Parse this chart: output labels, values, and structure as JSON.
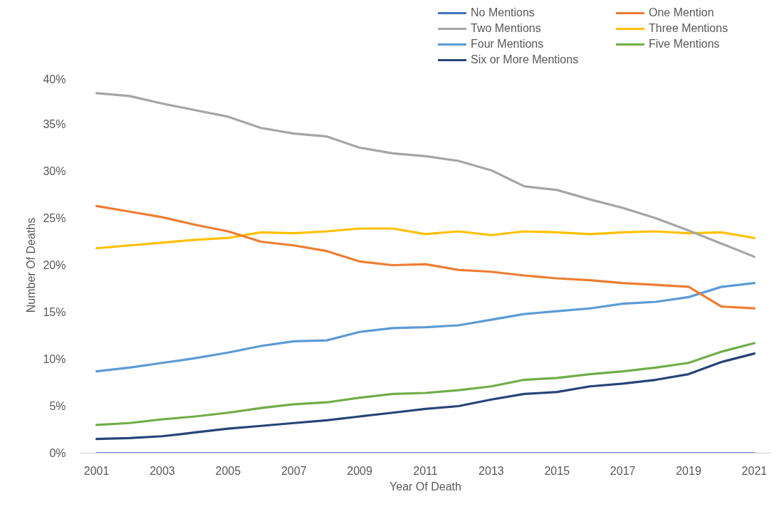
{
  "chart_data": {
    "type": "line",
    "xlabel": "Year Of Death",
    "ylabel": "Number Of Deaths",
    "x": [
      2001,
      2002,
      2003,
      2004,
      2005,
      2006,
      2007,
      2008,
      2009,
      2010,
      2011,
      2012,
      2013,
      2014,
      2015,
      2016,
      2017,
      2018,
      2019,
      2020,
      2021
    ],
    "xlim": [
      2000.5,
      2021.5
    ],
    "xticks": [
      2001,
      2003,
      2005,
      2007,
      2009,
      2011,
      2013,
      2015,
      2017,
      2019,
      2021
    ],
    "ylim": [
      0,
      40
    ],
    "yticks": [
      {
        "value": 0,
        "label": "0%"
      },
      {
        "value": 5,
        "label": "5%"
      },
      {
        "value": 10,
        "label": "10%"
      },
      {
        "value": 15,
        "label": "15%"
      },
      {
        "value": 20,
        "label": "20%"
      },
      {
        "value": 25,
        "label": "25%"
      },
      {
        "value": 30,
        "label": "30%"
      },
      {
        "value": 35,
        "label": "35%"
      },
      {
        "value": 40,
        "label": "40%"
      }
    ],
    "grid": false,
    "legend": "top right",
    "series": [
      {
        "name": "No Mentions",
        "color": "#4472c4",
        "values": [
          0,
          0,
          0,
          0,
          0,
          0,
          0,
          0,
          0,
          0,
          0,
          0,
          0,
          0,
          0,
          0,
          0,
          0,
          0,
          0,
          0
        ]
      },
      {
        "name": "One Mention",
        "color": "#ed7d31",
        "values": [
          26.3,
          25.7,
          25.1,
          24.3,
          23.6,
          22.5,
          22.1,
          21.5,
          20.4,
          20.0,
          20.1,
          19.5,
          19.3,
          18.9,
          18.6,
          18.4,
          18.1,
          17.9,
          17.7,
          15.6,
          15.4
        ]
      },
      {
        "name": "Two Mentions",
        "color": "#a5a5a5",
        "values": [
          38.3,
          38.0,
          37.2,
          36.5,
          35.8,
          34.6,
          34.0,
          33.7,
          32.5,
          31.9,
          31.6,
          31.1,
          30.1,
          28.4,
          28.0,
          27.0,
          26.1,
          25.0,
          23.7,
          22.3,
          20.9
        ]
      },
      {
        "name": "Three Mentions",
        "color": "#ffc000",
        "values": [
          21.8,
          22.1,
          22.4,
          22.7,
          22.9,
          23.5,
          23.4,
          23.6,
          23.9,
          23.9,
          23.3,
          23.6,
          23.2,
          23.6,
          23.5,
          23.3,
          23.5,
          23.6,
          23.4,
          23.5,
          22.9
        ]
      },
      {
        "name": "Four Mentions",
        "color": "#5b9bd5",
        "values": [
          8.7,
          9.1,
          9.6,
          10.1,
          10.7,
          11.4,
          11.9,
          12.0,
          12.9,
          13.3,
          13.4,
          13.6,
          14.2,
          14.8,
          15.1,
          15.4,
          15.9,
          16.1,
          16.6,
          17.7,
          18.1
        ]
      },
      {
        "name": "Five Mentions",
        "color": "#70ad47",
        "values": [
          3.0,
          3.2,
          3.6,
          3.9,
          4.3,
          4.8,
          5.2,
          5.4,
          5.9,
          6.3,
          6.4,
          6.7,
          7.1,
          7.8,
          8.0,
          8.4,
          8.7,
          9.1,
          9.6,
          10.8,
          11.7
        ]
      },
      {
        "name": "Six or More Mentions",
        "color": "#264478",
        "values": [
          1.5,
          1.6,
          1.8,
          2.2,
          2.6,
          2.9,
          3.2,
          3.5,
          3.9,
          4.3,
          4.7,
          5.0,
          5.7,
          6.3,
          6.5,
          7.1,
          7.4,
          7.8,
          8.4,
          9.7,
          10.6
        ]
      }
    ]
  }
}
